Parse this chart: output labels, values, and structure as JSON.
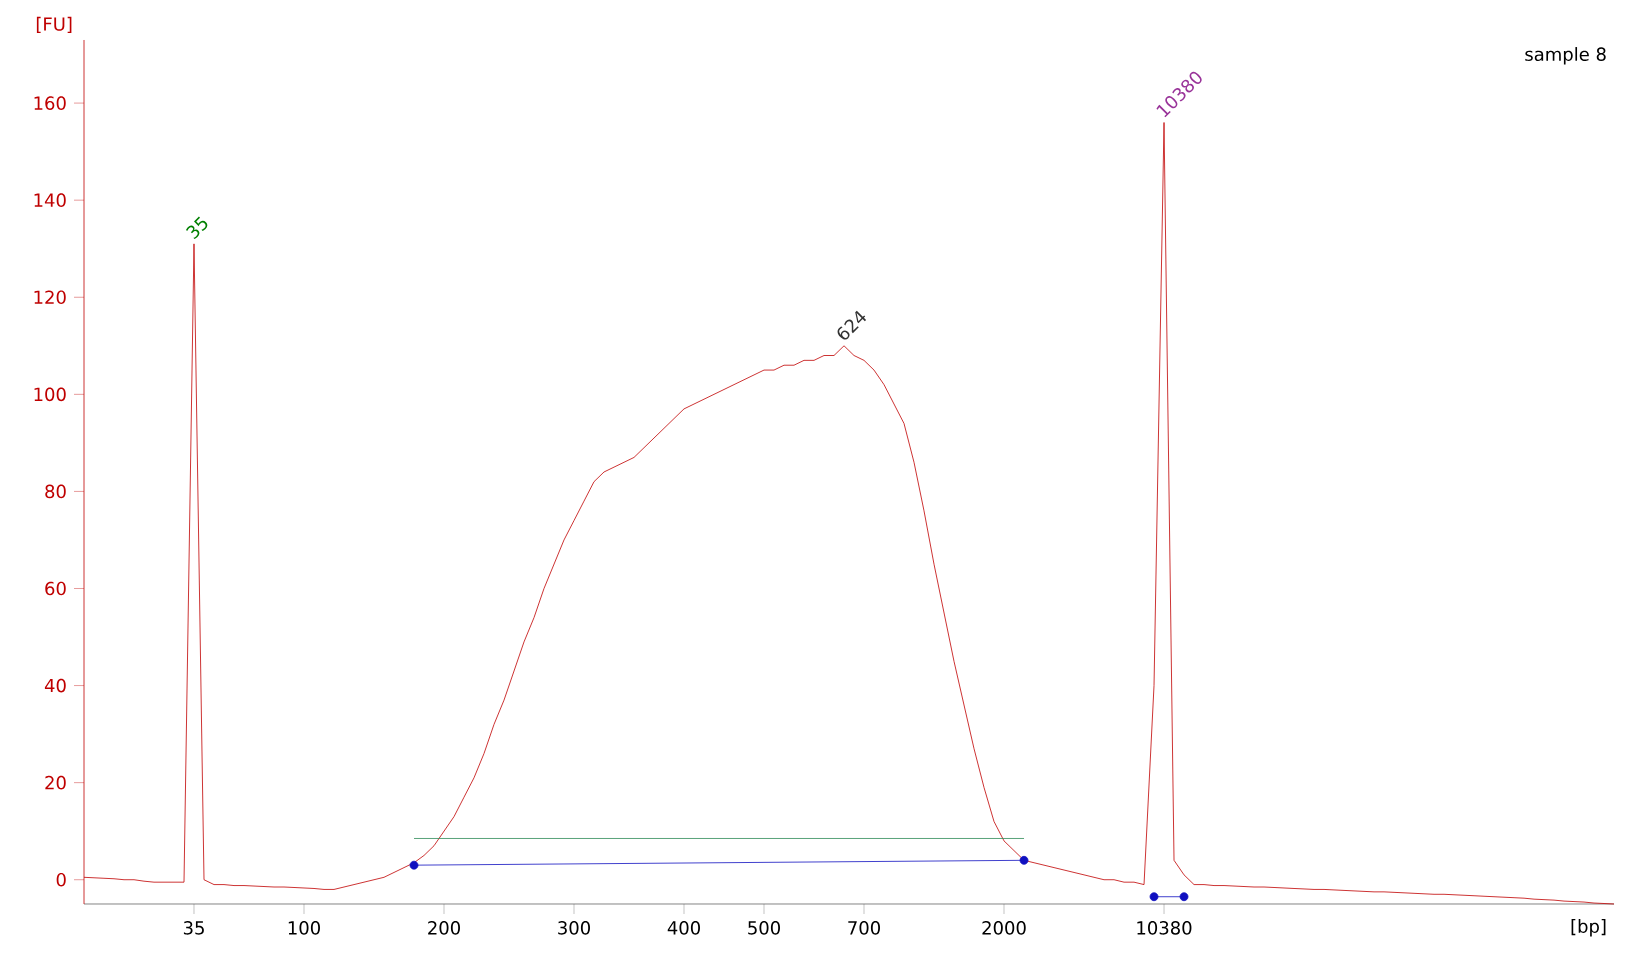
{
  "chart_data": {
    "type": "line",
    "title": "sample 8",
    "xlabel": "[bp]",
    "ylabel": "[FU]",
    "categories": [
      null,
      null,
      null,
      null,
      null,
      null,
      null,
      null,
      null,
      null,
      null,
      "35",
      null,
      null,
      null,
      null,
      null,
      null,
      null,
      null,
      null,
      null,
      "100",
      null,
      null,
      null,
      null,
      null,
      null,
      null,
      null,
      null,
      null,
      null,
      null,
      null,
      "200",
      null,
      null,
      null,
      null,
      null,
      null,
      null,
      null,
      null,
      null,
      null,
      null,
      "300",
      null,
      null,
      null,
      null,
      null,
      null,
      null,
      null,
      null,
      null,
      "400",
      null,
      null,
      null,
      null,
      null,
      null,
      null,
      "500",
      null,
      null,
      null,
      null,
      null,
      null,
      null,
      null,
      null,
      "700",
      null,
      null,
      null,
      null,
      null,
      null,
      null,
      null,
      null,
      null,
      null,
      null,
      null,
      "2000",
      null,
      null,
      null,
      null,
      null,
      null,
      null,
      null,
      null,
      null,
      null,
      null,
      null,
      null,
      null,
      "10380",
      null,
      null,
      null,
      null,
      null,
      null,
      null,
      null,
      null,
      null,
      null,
      null,
      null,
      null,
      null,
      null,
      null,
      null,
      null,
      null,
      null,
      null,
      null,
      null,
      null,
      null,
      null,
      null,
      null,
      null,
      null,
      null,
      null,
      null,
      null,
      null,
      null,
      null,
      null,
      null,
      null,
      null,
      null,
      null,
      null
    ],
    "ylim": [
      -5,
      173
    ],
    "yticks": [
      0,
      20,
      40,
      60,
      80,
      100,
      120,
      140,
      160
    ],
    "series": [
      {
        "color": "#c00000",
        "values": [
          0.5,
          0.4,
          0.3,
          0.2,
          0,
          0,
          -0.3,
          -0.5,
          -0.5,
          -0.5,
          -0.5,
          131,
          0,
          -1,
          -1,
          -1.2,
          -1.2,
          -1.3,
          -1.4,
          -1.5,
          -1.5,
          -1.6,
          -1.7,
          -1.8,
          -2,
          -2,
          -1.5,
          -1,
          -0.5,
          0,
          0.5,
          1.5,
          2.5,
          3.5,
          5,
          7,
          10,
          13,
          17,
          21,
          26,
          32,
          37,
          43,
          49,
          54,
          60,
          65,
          70,
          74,
          78,
          82,
          84,
          85,
          86,
          87,
          89,
          91,
          93,
          95,
          97,
          98,
          99,
          100,
          101,
          102,
          103,
          104,
          105,
          105,
          106,
          106,
          107,
          107,
          108,
          108,
          110,
          108,
          107,
          105,
          102,
          98,
          94,
          86,
          76,
          65,
          55,
          45,
          36,
          27,
          19,
          12,
          8,
          6,
          4,
          3.5,
          3,
          2.5,
          2,
          1.5,
          1,
          0.5,
          0,
          0,
          -0.5,
          -0.5,
          -1,
          40,
          156,
          4,
          1,
          -1,
          -1,
          -1.2,
          -1.2,
          -1.3,
          -1.4,
          -1.5,
          -1.5,
          -1.6,
          -1.7,
          -1.8,
          -1.9,
          -2,
          -2,
          -2.1,
          -2.2,
          -2.3,
          -2.4,
          -2.5,
          -2.5,
          -2.6,
          -2.7,
          -2.8,
          -2.9,
          -3,
          -3,
          -3.1,
          -3.2,
          -3.3,
          -3.4,
          -3.5,
          -3.6,
          -3.7,
          -3.8,
          -4,
          -4.1,
          -4.2,
          -4.4,
          -4.5,
          -4.6,
          -4.8,
          -4.9,
          -5
        ]
      },
      {
        "color": "#2e8b57",
        "values": [
          null,
          null,
          null,
          null,
          null,
          null,
          null,
          null,
          null,
          null,
          null,
          null,
          null,
          null,
          null,
          null,
          null,
          null,
          null,
          null,
          null,
          null,
          null,
          null,
          null,
          null,
          null,
          null,
          null,
          null,
          null,
          null,
          null,
          8.5,
          null,
          null,
          null,
          null,
          null,
          null,
          null,
          null,
          null,
          null,
          null,
          null,
          null,
          null,
          null,
          null,
          null,
          null,
          null,
          null,
          null,
          null,
          null,
          null,
          null,
          null,
          null,
          null,
          null,
          null,
          null,
          null,
          null,
          null,
          null,
          null,
          null,
          null,
          null,
          null,
          null,
          null,
          null,
          null,
          null,
          null,
          null,
          null,
          null,
          null,
          null,
          null,
          null,
          null,
          null,
          null,
          null,
          null,
          null,
          null,
          8.5,
          null,
          null,
          null,
          null,
          null,
          null,
          null,
          null,
          null,
          null,
          null,
          null,
          null,
          null,
          null,
          null,
          null,
          null,
          null,
          null,
          null,
          null,
          null,
          null,
          null,
          null,
          null,
          null,
          null,
          null,
          null,
          null,
          null,
          null,
          null,
          null,
          null,
          null,
          null,
          null,
          null,
          null,
          null,
          null,
          null,
          null,
          null,
          null,
          null,
          null,
          null,
          null,
          null,
          null,
          null,
          null,
          null,
          null,
          null
        ]
      },
      {
        "color": "#1010c0",
        "marker": "circle",
        "values": [
          null,
          null,
          null,
          null,
          null,
          null,
          null,
          null,
          null,
          null,
          null,
          null,
          null,
          null,
          null,
          null,
          null,
          null,
          null,
          null,
          null,
          null,
          null,
          null,
          null,
          null,
          null,
          null,
          null,
          null,
          null,
          null,
          null,
          3,
          null,
          null,
          null,
          null,
          null,
          null,
          null,
          null,
          null,
          null,
          null,
          null,
          null,
          null,
          null,
          null,
          null,
          null,
          null,
          null,
          null,
          null,
          null,
          null,
          null,
          null,
          null,
          null,
          null,
          null,
          null,
          null,
          null,
          null,
          null,
          null,
          null,
          null,
          null,
          null,
          null,
          null,
          null,
          null,
          null,
          null,
          null,
          null,
          null,
          null,
          null,
          null,
          null,
          null,
          null,
          null,
          null,
          null,
          null,
          null,
          4,
          null,
          null,
          null,
          null,
          null,
          null,
          null,
          null,
          null,
          null,
          null,
          null,
          null,
          null,
          null,
          null,
          null,
          null,
          null,
          null,
          null,
          null,
          null,
          null,
          null,
          null,
          null,
          null,
          null,
          null,
          null,
          null,
          null,
          null,
          null,
          null,
          null,
          null,
          null,
          null,
          null,
          null,
          null,
          null,
          null,
          null,
          null,
          null,
          null,
          null,
          null,
          null,
          null,
          null,
          null,
          null,
          null,
          null,
          null
        ]
      },
      {
        "color": "#1010c0",
        "marker": "circle",
        "values": [
          null,
          null,
          null,
          null,
          null,
          null,
          null,
          null,
          null,
          null,
          null,
          null,
          null,
          null,
          null,
          null,
          null,
          null,
          null,
          null,
          null,
          null,
          null,
          null,
          null,
          null,
          null,
          null,
          null,
          null,
          null,
          null,
          null,
          null,
          null,
          null,
          null,
          null,
          null,
          null,
          null,
          null,
          null,
          null,
          null,
          null,
          null,
          null,
          null,
          null,
          null,
          null,
          null,
          null,
          null,
          null,
          null,
          null,
          null,
          null,
          null,
          null,
          null,
          null,
          null,
          null,
          null,
          null,
          null,
          null,
          null,
          null,
          null,
          null,
          null,
          null,
          null,
          null,
          null,
          null,
          null,
          null,
          null,
          null,
          null,
          null,
          null,
          null,
          null,
          null,
          null,
          null,
          null,
          null,
          null,
          null,
          null,
          null,
          null,
          null,
          null,
          null,
          null,
          null,
          null,
          null,
          null,
          -3.5,
          null,
          null,
          -3.5,
          null,
          null,
          null,
          null,
          null,
          null,
          null,
          null,
          null,
          null,
          null,
          null,
          null,
          null,
          null,
          null,
          null,
          null,
          null,
          null,
          null,
          null,
          null,
          null,
          null,
          null,
          null,
          null,
          null,
          null,
          null,
          null,
          null,
          null,
          null,
          null,
          null,
          null,
          null,
          null,
          null,
          null,
          null
        ]
      }
    ],
    "annotations": [
      {
        "text": "35",
        "x": "35",
        "y": 131
      },
      {
        "text": "624",
        "y": 110
      },
      {
        "text": "10380",
        "x": "10380",
        "y": 156
      }
    ]
  }
}
